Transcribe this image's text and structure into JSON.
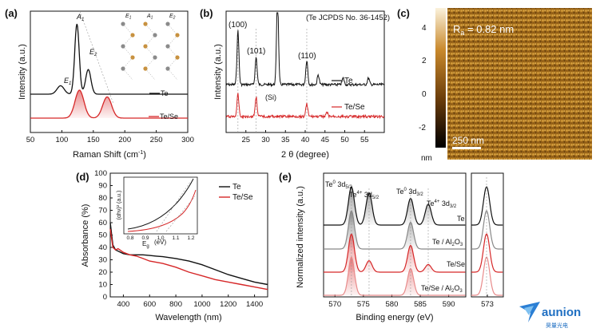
{
  "panels": {
    "a": {
      "letter": "(a)",
      "xlabel": "Raman Shift (cm",
      "xlabel_sup": "-1",
      "xlabel_end": ")",
      "ylabel": "Intensity (a.u.)",
      "legend": [
        "Te",
        "Te/Se"
      ],
      "peaks": [
        "E",
        "A",
        "E",
        "E",
        "A",
        "E"
      ],
      "peak_subs": [
        "1",
        "1",
        "2",
        "1",
        "1",
        "2"
      ]
    },
    "b": {
      "letter": "(b)",
      "xlabel": "2 θ (degree)",
      "ylabel": "Intensity (a.u.)",
      "note": "(Te JCPDS No. 36-1452)",
      "peaks": [
        "(100)",
        "(101)",
        "(110)",
        "(Si)"
      ],
      "legend": [
        "Te",
        "Te/Se"
      ]
    },
    "c": {
      "letter": "(c)",
      "ra": "R",
      "ra_sub": "a",
      "ra_val": " = 0.82 nm",
      "scalebar": "250 nm",
      "cbar_unit": "nm",
      "cbar_ticks": [
        "4",
        "2",
        "0",
        "-2"
      ]
    },
    "d": {
      "letter": "(d)",
      "xlabel": "Wavelength (nm)",
      "ylabel": "Absorbance (%)",
      "legend": [
        "Te",
        "Te/Se"
      ],
      "inset_ylabel": "(αhν)² (a.u.)",
      "inset_xlabel": "(eV)",
      "eg": "E",
      "eg_sub": "g"
    },
    "e": {
      "letter": "(e)",
      "xlabel": "Binding energy (eV)",
      "ylabel": "Normalized intensity (a.u.)",
      "labels": [
        "Te",
        "Te / Al",
        "Te/Se",
        "Te/Se / Al"
      ],
      "oxide_subs": [
        "2",
        "3"
      ],
      "peak_labels": [
        {
          "main": "Te",
          "sup": "0",
          "rest": " 3d",
          "sub": "5/2"
        },
        {
          "main": "Te",
          "sup": "4+",
          "rest": " 3d",
          "sub": "5/2"
        },
        {
          "main": "Te",
          "sup": "0",
          "rest": " 3d",
          "sub": "3/2"
        },
        {
          "main": "Te",
          "sup": "4+",
          "rest": " 3d",
          "sub": "3/2"
        }
      ]
    },
    "logo": {
      "text": "aunion",
      "sub": "昊量光电"
    }
  },
  "colors": {
    "te": "#111111",
    "tese": "#d62728",
    "gray": "#888888",
    "afm_dark": "#3b2005",
    "afm_light": "#f2c35a"
  },
  "chart_data": [
    {
      "type": "line",
      "title": "",
      "xlabel": "Raman Shift (cm-1)",
      "ylabel": "Intensity (a.u.)",
      "xlim": [
        50,
        300
      ],
      "x_ticks": [
        50,
        100,
        150,
        200,
        250,
        300
      ],
      "series": [
        {
          "name": "Te",
          "peaks": [
            {
              "x": 98,
              "h": 0.12,
              "w": 8
            },
            {
              "x": 124,
              "h": 1.0,
              "w": 5
            },
            {
              "x": 142,
              "h": 0.35,
              "w": 6
            }
          ]
        },
        {
          "name": "Te/Se",
          "peaks": [
            {
              "x": 128,
              "h": 0.5,
              "w": 10
            },
            {
              "x": 172,
              "h": 0.38,
              "w": 10
            }
          ]
        }
      ]
    },
    {
      "type": "line",
      "title": "",
      "xlabel": "2 θ (degree)",
      "ylabel": "Intensity (a.u.)",
      "xlim": [
        20,
        60
      ],
      "x_ticks": [
        25,
        30,
        35,
        40,
        45,
        50,
        55
      ],
      "series": [
        {
          "name": "Te",
          "peaks": [
            {
              "x": 23.0,
              "h": 1.0
            },
            {
              "x": 27.6,
              "h": 0.5
            },
            {
              "x": 33.0,
              "h": 1.7
            },
            {
              "x": 40.4,
              "h": 0.45
            },
            {
              "x": 43.3,
              "h": 0.18
            },
            {
              "x": 49.6,
              "h": 0.12
            },
            {
              "x": 56.0,
              "h": 0.12
            }
          ]
        },
        {
          "name": "Te/Se",
          "peaks": [
            {
              "x": 23.0,
              "h": 0.7
            },
            {
              "x": 27.6,
              "h": 0.6
            },
            {
              "x": 40.4,
              "h": 0.4
            },
            {
              "x": 45.5,
              "h": 0.12
            }
          ]
        }
      ]
    },
    {
      "type": "heatmap",
      "title": "",
      "cbar_range": [
        -3,
        4
      ],
      "cbar_ticks": [
        -2,
        0,
        2,
        4
      ],
      "cbar_unit": "nm"
    },
    {
      "type": "line",
      "title": "",
      "xlabel": "Wavelength (nm)",
      "ylabel": "Absorbance (%)",
      "xlim": [
        300,
        1500
      ],
      "ylim": [
        0,
        100
      ],
      "x_ticks": [
        400,
        600,
        800,
        1000,
        1200,
        1400
      ],
      "y_ticks": [
        0,
        10,
        20,
        30,
        40,
        50,
        60,
        70,
        80,
        90,
        100
      ],
      "series": [
        {
          "name": "Te",
          "x": [
            300,
            320,
            340,
            360,
            400,
            450,
            500,
            550,
            600,
            650,
            700,
            800,
            900,
            1000,
            1100,
            1200,
            1300,
            1400,
            1500
          ],
          "y": [
            60,
            42,
            38,
            37,
            35,
            34,
            34,
            34,
            33.5,
            33,
            32.5,
            31,
            29,
            26,
            22,
            18,
            15,
            12,
            10
          ]
        },
        {
          "name": "Te/Se",
          "x": [
            300,
            320,
            340,
            360,
            400,
            450,
            500,
            550,
            600,
            650,
            700,
            800,
            900,
            1000,
            1100,
            1200,
            1300,
            1400,
            1500
          ],
          "y": [
            55,
            40,
            38,
            39,
            36,
            34,
            33,
            31,
            29,
            28,
            27,
            24,
            20,
            17,
            14,
            12,
            10,
            8,
            6
          ]
        }
      ]
    },
    {
      "type": "line",
      "title": "",
      "xlabel": "Binding energy (eV)",
      "ylabel": "Normalized intensity (a.u.)",
      "xlim": [
        568,
        593
      ],
      "x_ticks": [
        570,
        575,
        580,
        585,
        590
      ],
      "series": [
        {
          "name": "Te",
          "peaks": [
            {
              "x": 572.9,
              "h": 1.0
            },
            {
              "x": 576.0,
              "h": 0.85
            },
            {
              "x": 583.3,
              "h": 0.7
            },
            {
              "x": 586.4,
              "h": 0.55
            }
          ]
        },
        {
          "name": "Te / Al2O3",
          "peaks": [
            {
              "x": 572.9,
              "h": 1.0
            },
            {
              "x": 583.3,
              "h": 0.7
            }
          ]
        },
        {
          "name": "Te/Se",
          "peaks": [
            {
              "x": 572.9,
              "h": 1.0
            },
            {
              "x": 576.0,
              "h": 0.3
            },
            {
              "x": 583.3,
              "h": 0.7
            },
            {
              "x": 586.4,
              "h": 0.2
            }
          ]
        },
        {
          "name": "Te/Se / Al2O3",
          "peaks": [
            {
              "x": 572.9,
              "h": 1.0
            },
            {
              "x": 583.3,
              "h": 0.7
            }
          ]
        }
      ]
    }
  ]
}
